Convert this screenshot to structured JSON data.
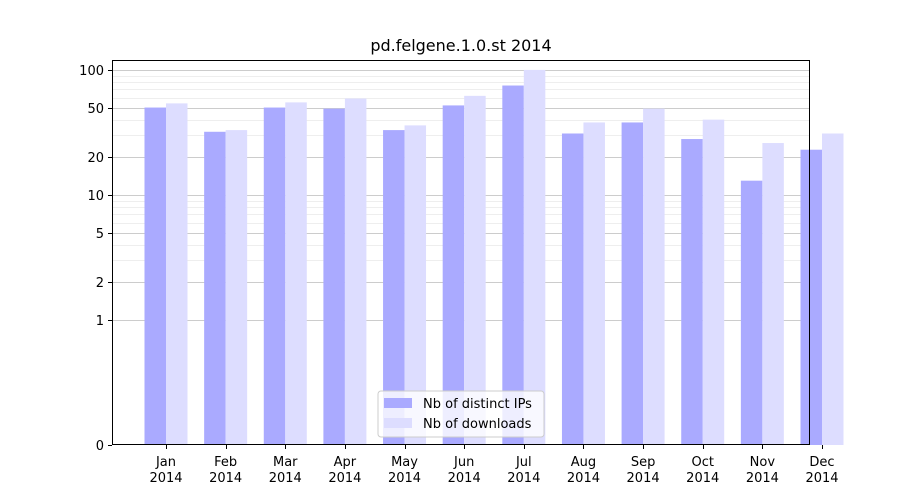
{
  "chart_data": {
    "type": "bar",
    "title": "pd.felgene.1.0.st 2014",
    "xlabel": "",
    "ylabel": "",
    "yscale": "symlog",
    "ylim": [
      0,
      120
    ],
    "yticks": [
      0,
      1,
      2,
      5,
      10,
      20,
      50,
      100
    ],
    "categories": [
      "Jan\n2014",
      "Feb\n2014",
      "Mar\n2014",
      "Apr\n2014",
      "May\n2014",
      "Jun\n2014",
      "Jul\n2014",
      "Aug\n2014",
      "Sep\n2014",
      "Oct\n2014",
      "Nov\n2014",
      "Dec\n2014"
    ],
    "series": [
      {
        "name": "Nb of distinct IPs",
        "color": "#aaaaff",
        "values": [
          50,
          32,
          50,
          49,
          33,
          52,
          75,
          31,
          38,
          28,
          13,
          23
        ]
      },
      {
        "name": "Nb of downloads",
        "color": "#ddddff",
        "values": [
          54,
          33,
          55,
          59,
          36,
          62,
          100,
          38,
          49,
          40,
          26,
          31
        ]
      }
    ],
    "legend": "bottom-center",
    "grid": true
  }
}
